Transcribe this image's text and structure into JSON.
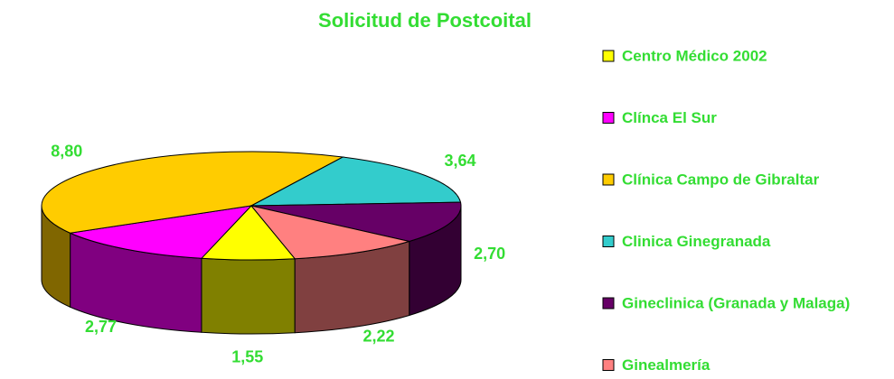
{
  "chart_data": {
    "type": "pie3d",
    "title": "Solicitud de Postcoital",
    "categories": [
      "Centro Médico 2002",
      "Clínca El Sur",
      "Clínica Campo de Gibraltar",
      "Clinica Ginegranada",
      "Gineclinica (Granada y Malaga)",
      "Ginealmería"
    ],
    "values": [
      1.55,
      2.77,
      8.8,
      3.64,
      2.7,
      2.22
    ],
    "value_labels": [
      "1,55",
      "2,77",
      "8,80",
      "3,64",
      "2,70",
      "2,22"
    ],
    "colors": [
      "#ffff00",
      "#ff00ff",
      "#ffcc00",
      "#33cccc",
      "#660066",
      "#ff8080"
    ],
    "legend": "right"
  }
}
